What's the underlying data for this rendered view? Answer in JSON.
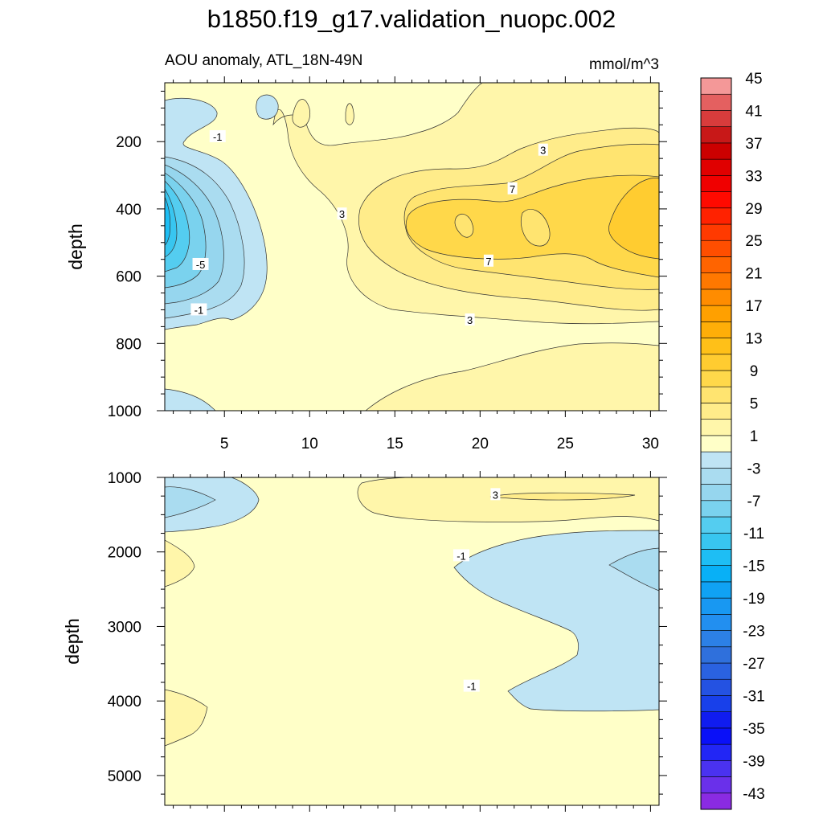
{
  "page": {
    "title": "b1850.f19_g17.validation_nuopc.002",
    "subtitle_left": "AOU anomaly, ATL_18N-49N",
    "subtitle_right": "mmol/m^3"
  },
  "chart_data": [
    {
      "type": "contour",
      "panel": "upper",
      "title": "b1850.f19_g17.validation_nuopc.002",
      "subtitle": "AOU anomaly, ATL_18N-49N",
      "units": "mmol/m^3",
      "xlabel": "",
      "ylabel": "depth",
      "xlim": [
        1.5,
        30.5
      ],
      "ylim": [
        1000,
        25
      ],
      "x_ticks": [
        5,
        10,
        15,
        20,
        25,
        30
      ],
      "y_ticks": [
        200,
        400,
        600,
        800,
        1000
      ],
      "contour_labels": [
        {
          "text": "-1",
          "x": 4.6,
          "y": 185
        },
        {
          "text": "3",
          "x": 11.9,
          "y": 415
        },
        {
          "text": "3",
          "x": 23.7,
          "y": 225
        },
        {
          "text": "7",
          "x": 21.9,
          "y": 340
        },
        {
          "text": "-5",
          "x": 3.6,
          "y": 565
        },
        {
          "text": "7",
          "x": 20.5,
          "y": 555
        },
        {
          "text": "-1",
          "x": 3.5,
          "y": 700
        },
        {
          "text": "3",
          "x": 19.4,
          "y": 730
        }
      ],
      "features": [
        {
          "name": "negative anomaly core near western boundary",
          "min_level": -13,
          "x": 2,
          "y": 380
        },
        {
          "name": "positive anomaly maximum",
          "max_level": 11,
          "x": 29,
          "y": 400
        }
      ]
    },
    {
      "type": "contour",
      "panel": "lower",
      "xlabel": "",
      "ylabel": "depth",
      "xlim": [
        1.5,
        30.5
      ],
      "ylim": [
        5400,
        1000
      ],
      "x_ticks": [
        5,
        10,
        15,
        20,
        25,
        30
      ],
      "y_ticks": [
        1000,
        2000,
        3000,
        4000,
        5000
      ],
      "contour_labels": [
        {
          "text": "3",
          "x": 20.9,
          "y": 1230
        },
        {
          "text": "-1",
          "x": 18.9,
          "y": 2050
        },
        {
          "text": "-1",
          "x": 19.5,
          "y": 3800
        }
      ]
    },
    {
      "type": "colorbar",
      "levels": [
        -45,
        -43,
        -41,
        -39,
        -37,
        -35,
        -33,
        -31,
        -29,
        -27,
        -25,
        -23,
        -21,
        -19,
        -17,
        -15,
        -13,
        -11,
        -9,
        -7,
        -5,
        -3,
        -1,
        1,
        3,
        5,
        7,
        9,
        11,
        13,
        15,
        17,
        19,
        21,
        23,
        25,
        27,
        29,
        31,
        33,
        35,
        37,
        39,
        41,
        43,
        45
      ],
      "tick_labels": [
        "45",
        "41",
        "37",
        "33",
        "29",
        "25",
        "21",
        "17",
        "13",
        "9",
        "5",
        "1",
        "-3",
        "-7",
        "-11",
        "-15",
        "-19",
        "-23",
        "-27",
        "-31",
        "-35",
        "-39",
        "-43"
      ],
      "colors": [
        "#8a2be2",
        "#6a30ea",
        "#4a32f0",
        "#2226f5",
        "#0a10f8",
        "#101cf0",
        "#1840ea",
        "#2452e2",
        "#2a62e0",
        "#2f70dc",
        "#2c80e6",
        "#228ff0",
        "#1898f2",
        "#10a2f4",
        "#08b0f6",
        "#1ebef4",
        "#38c6f0",
        "#54cdf0",
        "#7ad2ee",
        "#96d6ee",
        "#aadcf0",
        "#bfe4f4",
        "#ffffc8",
        "#fff6aa",
        "#ffec8a",
        "#ffe470",
        "#ffd84a",
        "#ffcc30",
        "#ffc018",
        "#ffae08",
        "#ffa000",
        "#ff8c00",
        "#ff7800",
        "#ff6400",
        "#ff4e00",
        "#ff3a00",
        "#ff2200",
        "#ff0a00",
        "#f00000",
        "#e00000",
        "#cc0000",
        "#c81818",
        "#d83c3c",
        "#e46060",
        "#f49898"
      ]
    }
  ]
}
